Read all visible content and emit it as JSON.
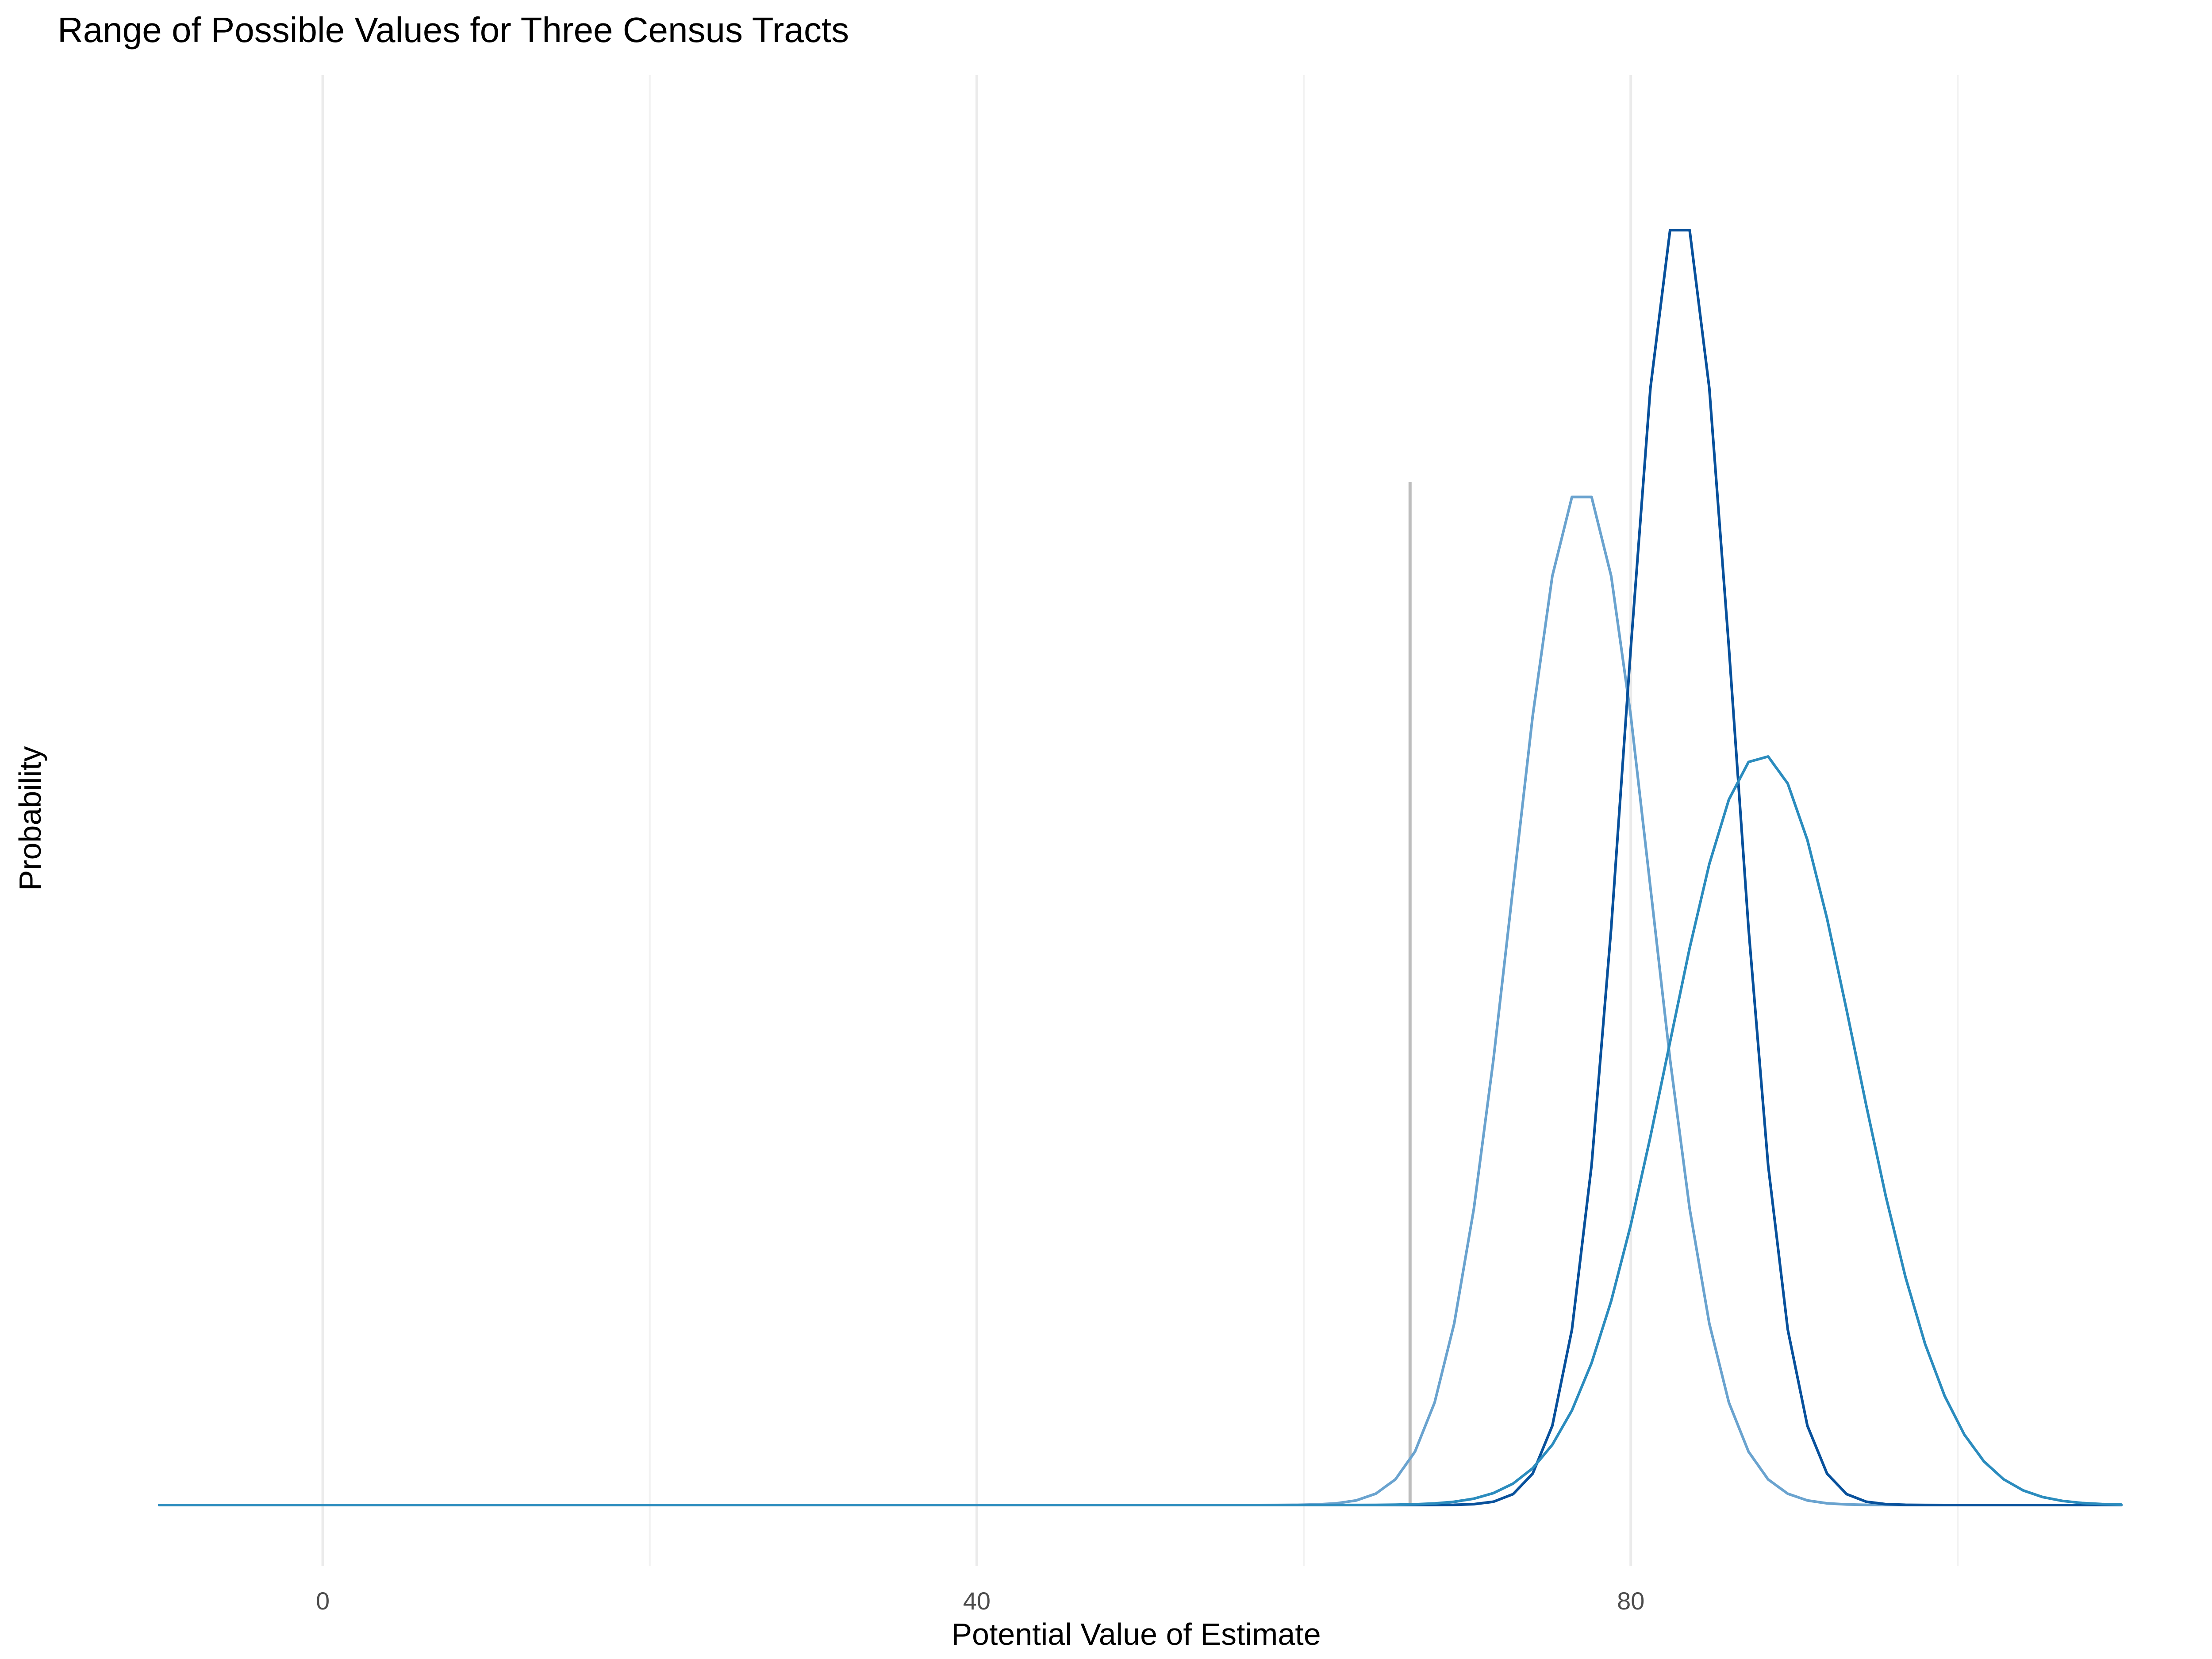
{
  "chart_data": {
    "type": "line",
    "title": "Range of Possible Values for Three Census Tracts",
    "xlabel": "Potential Value of Estimate",
    "ylabel": "Probability",
    "xlim": [
      -10,
      110
    ],
    "ylim": [
      0,
      0.1
    ],
    "x_ticks": [
      0,
      40,
      80
    ],
    "x_tick_labels": [
      "0",
      "40",
      "80"
    ],
    "x_minor_ticks": [
      20,
      60,
      100
    ],
    "grid": "vertical",
    "legend": "none",
    "reference_line": {
      "x": 66.5,
      "y_top": 0.075,
      "color": "#bdbdbd"
    },
    "series": [
      {
        "mean": 77,
        "sd": 4.2,
        "color": "#6aa3cf"
      },
      {
        "mean": 83,
        "sd": 3.3,
        "color": "#08519c"
      },
      {
        "mean": 88,
        "sd": 5.7,
        "color": "#2b8cbe"
      }
    ],
    "x_start": -10,
    "x_end": 110,
    "x_step": 1.2
  }
}
